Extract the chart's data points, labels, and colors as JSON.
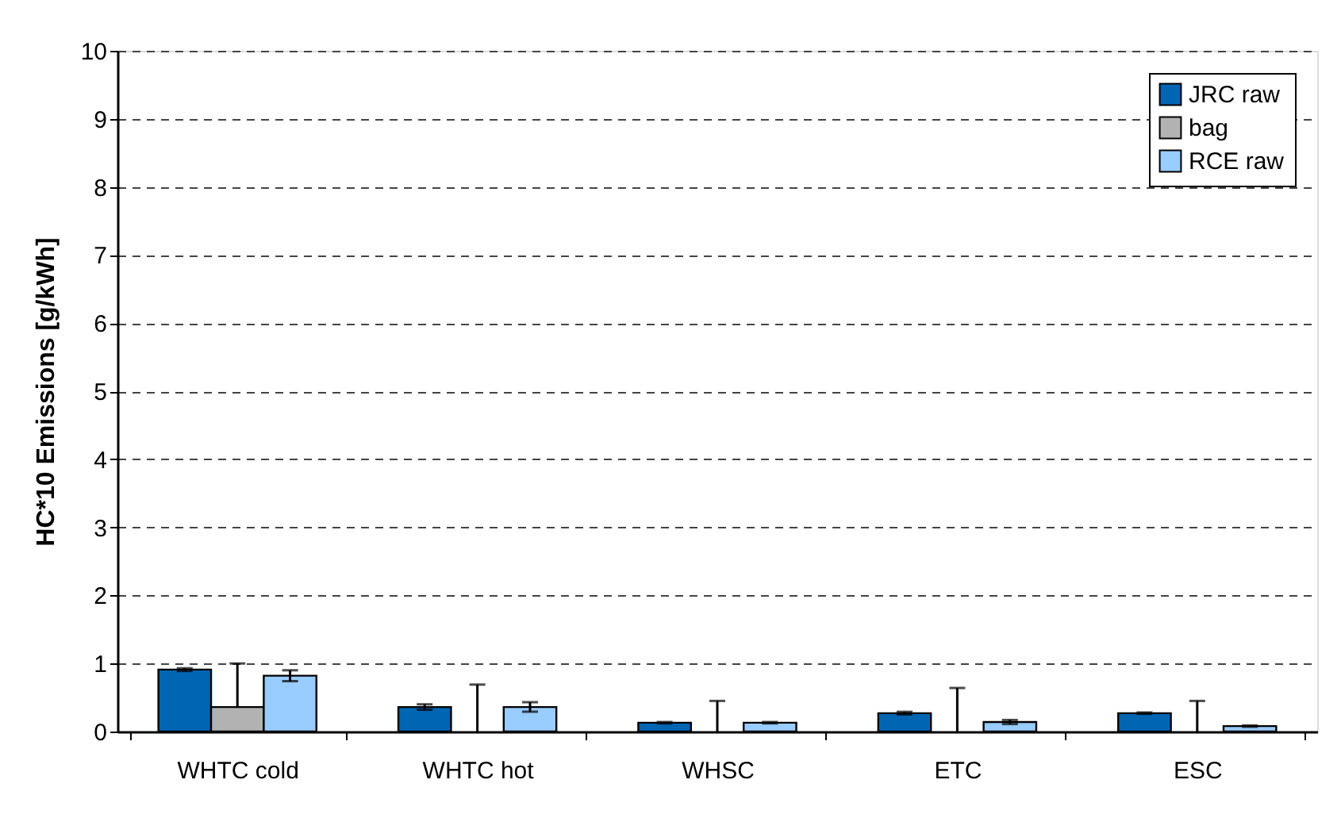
{
  "chart_data": {
    "type": "bar",
    "ylabel": "HC*10 Emissions [g/kWh]",
    "categories": [
      "WHTC cold",
      "WHTC hot",
      "WHSC",
      "ETC",
      "ESC"
    ],
    "series": [
      {
        "name": "JRC raw",
        "color": "#0066b3",
        "values": [
          0.91,
          0.36,
          0.13,
          0.27,
          0.27
        ],
        "errors": [
          0.02,
          0.04,
          0.01,
          0.02,
          0.01
        ]
      },
      {
        "name": "bag",
        "color": "#b2b2b2",
        "values": [
          0.36,
          0,
          0,
          0,
          0
        ],
        "errors": [
          [
            0.36,
            1.0
          ],
          [
            0,
            0.69
          ],
          [
            0,
            0.45
          ],
          [
            0,
            0.64
          ],
          [
            0,
            0.45
          ]
        ]
      },
      {
        "name": "RCE raw",
        "color": "#99ccff",
        "values": [
          0.82,
          0.36,
          0.13,
          0.14,
          0.08
        ],
        "errors": [
          0.08,
          0.07,
          0.01,
          0.03,
          0.01
        ]
      }
    ],
    "ylim": [
      0,
      10
    ],
    "yticks": [
      0,
      1,
      2,
      3,
      4,
      5,
      6,
      7,
      8,
      9,
      10
    ],
    "grid": "y",
    "legend": "top right"
  }
}
